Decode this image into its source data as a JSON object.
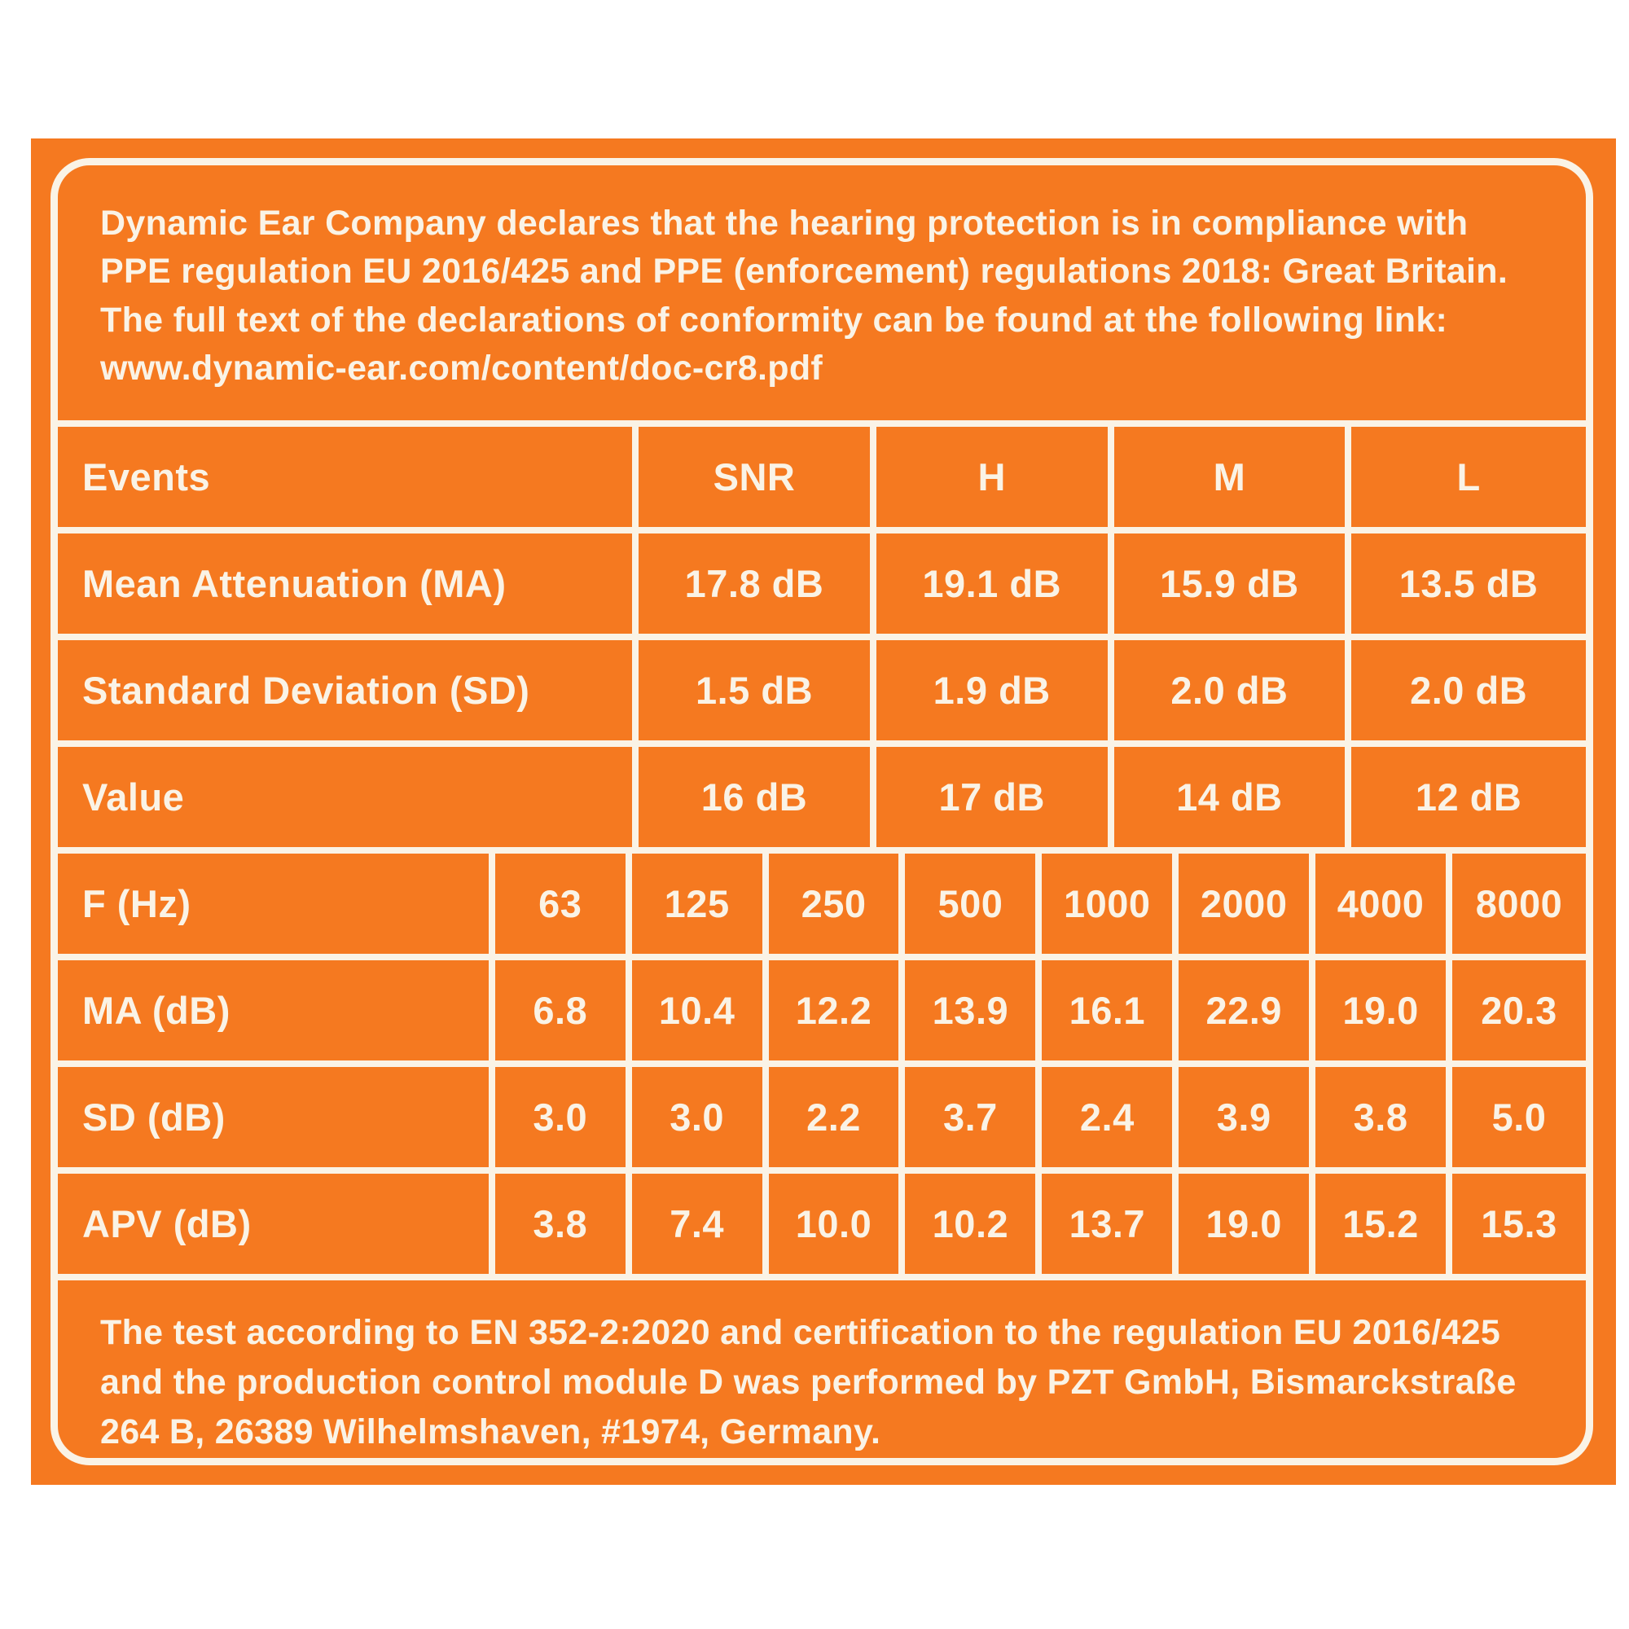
{
  "colors": {
    "card_orange": "#f57920",
    "ink_cream": "#faf3e6",
    "page_background": "#ffffff"
  },
  "top_paragraph": "Dynamic Ear Company declares that the hearing protection is in compliance with PPE regulation EU 2016/425 and PPE (enforcement) regulations 2018: Great Britain. The full text of the declarations of conformity can be found at the following link:  www.dynamic-ear.com/content/doc-cr8.pdf",
  "events_table": {
    "header": [
      "Events",
      "SNR",
      "H",
      "M",
      "L"
    ],
    "rows": [
      {
        "label": "Mean Attenuation (MA)",
        "values": [
          "17.8 dB",
          "19.1 dB",
          "15.9 dB",
          "13.5 dB"
        ]
      },
      {
        "label": "Standard Deviation (SD)",
        "values": [
          "1.5 dB",
          "1.9 dB",
          "2.0 dB",
          "2.0 dB"
        ]
      },
      {
        "label": "Value",
        "values": [
          "16 dB",
          "17 dB",
          "14 dB",
          "12 dB"
        ]
      }
    ]
  },
  "frequency_table": {
    "header": [
      "F (Hz)",
      "63",
      "125",
      "250",
      "500",
      "1000",
      "2000",
      "4000",
      "8000"
    ],
    "rows": [
      {
        "label": "MA (dB)",
        "values": [
          "6.8",
          "10.4",
          "12.2",
          "13.9",
          "16.1",
          "22.9",
          "19.0",
          "20.3"
        ]
      },
      {
        "label": "SD (dB)",
        "values": [
          "3.0",
          "3.0",
          "2.2",
          "3.7",
          "2.4",
          "3.9",
          "3.8",
          "5.0"
        ]
      },
      {
        "label": "APV (dB)",
        "values": [
          "3.8",
          "7.4",
          "10.0",
          "10.2",
          "13.7",
          "19.0",
          "15.2",
          "15.3"
        ]
      }
    ]
  },
  "bottom_paragraph": "The test according to EN 352-2:2020 and certification to the regulation EU 2016/425 and the production control module D was performed by PZT GmbH, Bismarckstraße 264 B, 26389 Wilhelmshaven, #1974, Germany."
}
